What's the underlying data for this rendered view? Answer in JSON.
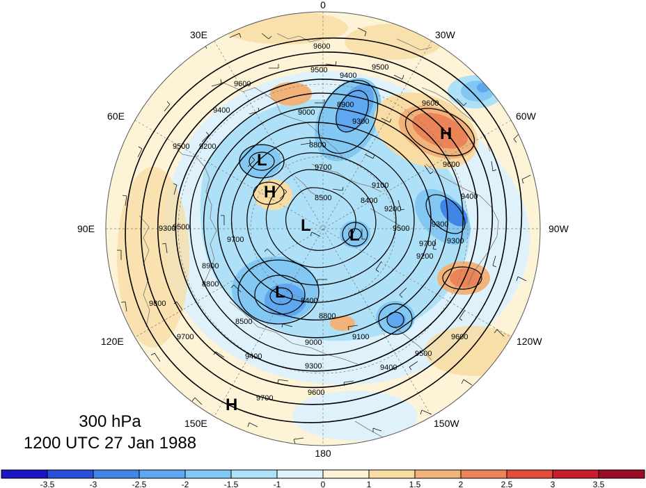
{
  "map": {
    "level": "300 hPa",
    "valid_time": "1200 UTC 27 Jan 1988",
    "projection": "north-polar-stereographic",
    "longitude_labels": {
      "top": "0",
      "top_right": "30W",
      "upper_right": "60W",
      "right": "90W",
      "lower_right": "120W",
      "bottom_right": "150W",
      "bottom": "180",
      "bottom_left": "150E",
      "lower_left": "120E",
      "left": "90E",
      "upper_left": "60E",
      "top_left": "30E"
    },
    "contour_labels": [
      "9600",
      "9500",
      "9400",
      "9600",
      "9500",
      "9400",
      "9200",
      "9000",
      "8800",
      "9300",
      "9600",
      "8900",
      "9500",
      "9700",
      "8500",
      "8400",
      "9100",
      "9200",
      "9400",
      "9300",
      "9500",
      "9600",
      "9700",
      "9600",
      "9500",
      "9300",
      "9400",
      "8400",
      "8800",
      "9000",
      "8500",
      "9300",
      "9400",
      "9500",
      "9100",
      "9200",
      "9300",
      "8900",
      "8800",
      "9700",
      "9600",
      "9700",
      "9800",
      "9700"
    ],
    "pressure_centers": [
      "H",
      "L",
      "H",
      "L",
      "L",
      "L",
      "H"
    ],
    "colorbar": {
      "ticks": [
        "-3.5",
        "-3",
        "-2.5",
        "-2",
        "-1.5",
        "-1",
        "0",
        "1",
        "1.5",
        "2",
        "2.5",
        "3",
        "3.5"
      ],
      "colors": [
        "#1b17c4",
        "#2a4fd9",
        "#3f86e6",
        "#5fa8ef",
        "#82c8f2",
        "#aee0f7",
        "#dff2fb",
        "#fdf4d8",
        "#f8dca3",
        "#f2b37a",
        "#eb8458",
        "#df4d3b",
        "#c71d2d",
        "#9b0d26"
      ]
    }
  }
}
